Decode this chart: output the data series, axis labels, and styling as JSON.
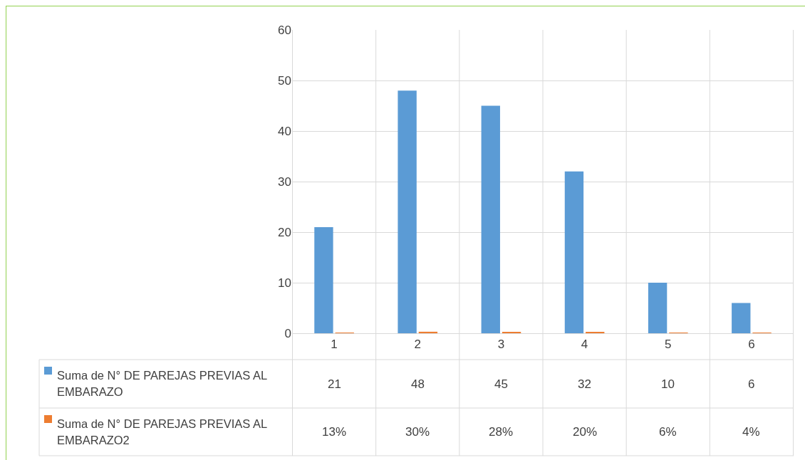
{
  "chart_data": {
    "type": "bar",
    "categories": [
      "1",
      "2",
      "3",
      "4",
      "5",
      "6"
    ],
    "series": [
      {
        "name": "Suma de N° DE PAREJAS PREVIAS AL EMBARAZO",
        "color": "#5b9bd5",
        "values": [
          21,
          48,
          45,
          32,
          10,
          6
        ]
      },
      {
        "name": "Suma de N° DE PAREJAS PREVIAS AL EMBARAZO2",
        "color": "#ed7d31",
        "values": [
          0.13,
          0.3,
          0.28,
          0.2,
          0.06,
          0.04
        ],
        "value_labels": [
          "13%",
          "30%",
          "28%",
          "20%",
          "6%",
          "4%"
        ]
      }
    ],
    "ylim": [
      0,
      60
    ],
    "yticks": [
      0,
      10,
      20,
      30,
      40,
      50,
      60
    ],
    "grid": true,
    "legend": "bottom left",
    "data_labels": true
  }
}
